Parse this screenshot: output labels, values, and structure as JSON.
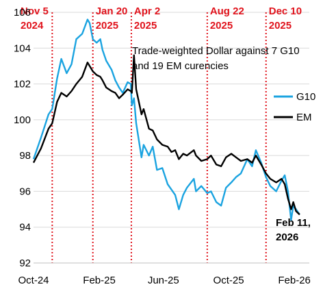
{
  "chart_data": {
    "type": "line",
    "title": "",
    "xlabel": "",
    "ylabel": "",
    "ylim": [
      92,
      106
    ],
    "xlim": [
      "2024-10-01",
      "2026-03-01"
    ],
    "y_ticks": [
      "92",
      "94",
      "96",
      "98",
      "100",
      "102",
      "104",
      "106"
    ],
    "x_ticks": [
      {
        "date": "2024-10-01",
        "label": "Oct-24"
      },
      {
        "date": "2025-02-01",
        "label": "Feb-25"
      },
      {
        "date": "2025-06-01",
        "label": "Jun-25"
      },
      {
        "date": "2025-10-01",
        "label": "Oct-25"
      },
      {
        "date": "2026-02-01",
        "label": "Feb-26"
      }
    ],
    "grid": "horizontal",
    "legend_position": "right",
    "annotation": [
      "Trade-weighted Dollar against 7 G10",
      "and 19 EM curencies"
    ],
    "end_label": [
      "Feb 11,",
      "2026"
    ],
    "events": [
      {
        "date": "2024-11-05",
        "label": [
          "Nov 5",
          "2024"
        ]
      },
      {
        "date": "2025-01-20",
        "label": [
          "Jan 20",
          "2025"
        ]
      },
      {
        "date": "2025-04-02",
        "label": [
          "Apr 2",
          "2025"
        ]
      },
      {
        "date": "2025-08-22",
        "label": [
          "Aug 22",
          "2025"
        ]
      },
      {
        "date": "2025-12-10",
        "label": [
          "Dec 10",
          "2025"
        ]
      }
    ],
    "series": [
      {
        "name": "G10",
        "color": "#1aa3e0",
        "points": [
          [
            "2024-10-01",
            97.8
          ],
          [
            "2024-10-15",
            99.0
          ],
          [
            "2024-10-29",
            100.3
          ],
          [
            "2024-11-05",
            100.6
          ],
          [
            "2024-11-14",
            102.3
          ],
          [
            "2024-11-22",
            103.4
          ],
          [
            "2024-12-02",
            102.6
          ],
          [
            "2024-12-11",
            103.1
          ],
          [
            "2024-12-20",
            104.5
          ],
          [
            "2024-12-31",
            104.8
          ],
          [
            "2025-01-10",
            105.6
          ],
          [
            "2025-01-14",
            105.4
          ],
          [
            "2025-01-20",
            104.5
          ],
          [
            "2025-01-27",
            104.3
          ],
          [
            "2025-02-03",
            104.5
          ],
          [
            "2025-02-07",
            103.9
          ],
          [
            "2025-02-14",
            103.3
          ],
          [
            "2025-02-24",
            102.8
          ],
          [
            "2025-03-03",
            102.2
          ],
          [
            "2025-03-10",
            101.8
          ],
          [
            "2025-03-17",
            101.5
          ],
          [
            "2025-03-26",
            102.1
          ],
          [
            "2025-04-01",
            102.0
          ],
          [
            "2025-04-03",
            100.8
          ],
          [
            "2025-04-07",
            101.2
          ],
          [
            "2025-04-11",
            99.8
          ],
          [
            "2025-04-21",
            97.9
          ],
          [
            "2025-04-25",
            98.6
          ],
          [
            "2025-05-05",
            98.0
          ],
          [
            "2025-05-12",
            98.5
          ],
          [
            "2025-05-20",
            97.2
          ],
          [
            "2025-05-30",
            97.3
          ],
          [
            "2025-06-09",
            96.4
          ],
          [
            "2025-06-16",
            96.1
          ],
          [
            "2025-06-23",
            95.8
          ],
          [
            "2025-06-30",
            95.0
          ],
          [
            "2025-07-08",
            95.8
          ],
          [
            "2025-07-15",
            96.2
          ],
          [
            "2025-07-28",
            96.7
          ],
          [
            "2025-08-01",
            96.0
          ],
          [
            "2025-08-11",
            96.3
          ],
          [
            "2025-08-22",
            95.9
          ],
          [
            "2025-08-29",
            96.0
          ],
          [
            "2025-09-08",
            95.4
          ],
          [
            "2025-09-17",
            95.2
          ],
          [
            "2025-09-26",
            96.2
          ],
          [
            "2025-10-06",
            96.5
          ],
          [
            "2025-10-15",
            96.8
          ],
          [
            "2025-10-24",
            97.0
          ],
          [
            "2025-11-05",
            97.8
          ],
          [
            "2025-11-14",
            97.4
          ],
          [
            "2025-11-21",
            98.3
          ],
          [
            "2025-12-01",
            97.6
          ],
          [
            "2025-12-10",
            96.8
          ],
          [
            "2025-12-18",
            96.3
          ],
          [
            "2025-12-29",
            96.0
          ],
          [
            "2026-01-08",
            96.6
          ],
          [
            "2026-01-14",
            96.9
          ],
          [
            "2026-01-20",
            96.0
          ],
          [
            "2026-01-26",
            94.4
          ],
          [
            "2026-01-30",
            95.2
          ],
          [
            "2026-02-04",
            95.0
          ],
          [
            "2026-02-11",
            94.7
          ]
        ]
      },
      {
        "name": "EM",
        "color": "#000000",
        "points": [
          [
            "2024-10-01",
            97.6
          ],
          [
            "2024-10-15",
            98.4
          ],
          [
            "2024-10-29",
            99.5
          ],
          [
            "2024-11-05",
            99.8
          ],
          [
            "2024-11-14",
            101.0
          ],
          [
            "2024-11-22",
            101.5
          ],
          [
            "2024-12-02",
            101.3
          ],
          [
            "2024-12-11",
            101.6
          ],
          [
            "2024-12-20",
            102.0
          ],
          [
            "2024-12-31",
            102.4
          ],
          [
            "2025-01-10",
            103.2
          ],
          [
            "2025-01-14",
            103.0
          ],
          [
            "2025-01-20",
            102.7
          ],
          [
            "2025-01-27",
            102.5
          ],
          [
            "2025-02-03",
            102.4
          ],
          [
            "2025-02-07",
            102.2
          ],
          [
            "2025-02-14",
            101.8
          ],
          [
            "2025-02-24",
            101.6
          ],
          [
            "2025-03-03",
            101.5
          ],
          [
            "2025-03-10",
            101.2
          ],
          [
            "2025-03-17",
            101.4
          ],
          [
            "2025-03-26",
            101.7
          ],
          [
            "2025-04-01",
            101.6
          ],
          [
            "2025-04-03",
            101.5
          ],
          [
            "2025-04-07",
            103.6
          ],
          [
            "2025-04-11",
            101.7
          ],
          [
            "2025-04-21",
            100.3
          ],
          [
            "2025-04-25",
            100.6
          ],
          [
            "2025-05-05",
            99.5
          ],
          [
            "2025-05-12",
            99.4
          ],
          [
            "2025-05-20",
            98.9
          ],
          [
            "2025-05-30",
            98.6
          ],
          [
            "2025-06-09",
            98.5
          ],
          [
            "2025-06-16",
            98.2
          ],
          [
            "2025-06-23",
            98.3
          ],
          [
            "2025-06-30",
            97.8
          ],
          [
            "2025-07-08",
            98.1
          ],
          [
            "2025-07-15",
            98.0
          ],
          [
            "2025-07-28",
            98.3
          ],
          [
            "2025-08-01",
            98.0
          ],
          [
            "2025-08-11",
            97.7
          ],
          [
            "2025-08-22",
            97.8
          ],
          [
            "2025-08-29",
            98.0
          ],
          [
            "2025-09-08",
            97.5
          ],
          [
            "2025-09-17",
            97.4
          ],
          [
            "2025-09-26",
            97.9
          ],
          [
            "2025-10-06",
            98.1
          ],
          [
            "2025-10-15",
            97.9
          ],
          [
            "2025-10-24",
            97.7
          ],
          [
            "2025-11-05",
            97.8
          ],
          [
            "2025-11-14",
            97.6
          ],
          [
            "2025-11-21",
            98.0
          ],
          [
            "2025-12-01",
            97.5
          ],
          [
            "2025-12-10",
            97.0
          ],
          [
            "2025-12-18",
            96.7
          ],
          [
            "2025-12-29",
            96.5
          ],
          [
            "2026-01-08",
            96.7
          ],
          [
            "2026-01-14",
            96.4
          ],
          [
            "2026-01-20",
            95.6
          ],
          [
            "2026-01-26",
            95.0
          ],
          [
            "2026-01-30",
            95.4
          ],
          [
            "2026-02-04",
            94.9
          ],
          [
            "2026-02-11",
            94.7
          ]
        ]
      }
    ]
  }
}
